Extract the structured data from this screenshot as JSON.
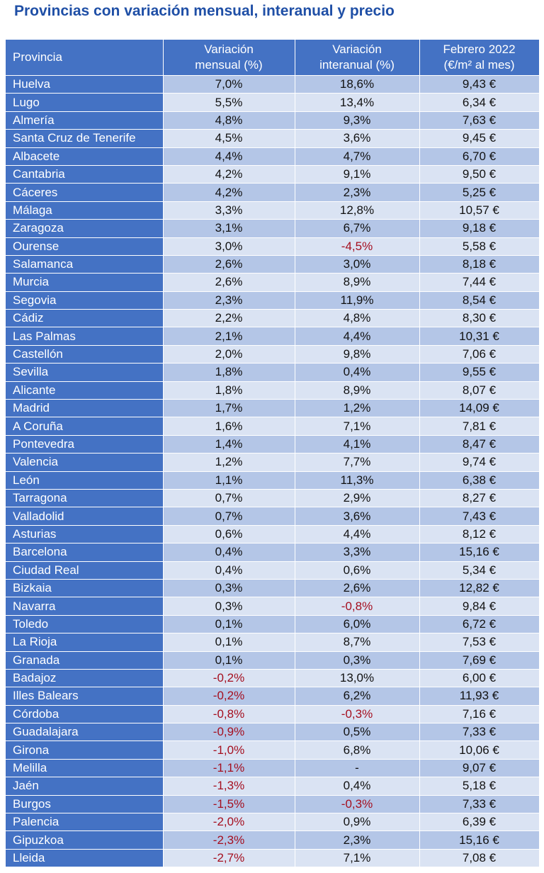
{
  "title": "Provincias con variación mensual, interanual y precio",
  "colors": {
    "header_blue": "#4472c4",
    "row_dark": "#b4c6e7",
    "row_light": "#dae3f3",
    "negative": "#a50f1f",
    "title": "#1f4fa6"
  },
  "table": {
    "headers": {
      "provincia": "Provincia",
      "mensual_l1": "Variación",
      "mensual_l2": "mensual (%)",
      "interanual_l1": "Variación",
      "interanual_l2": "interanual (%)",
      "precio_l1": "Febrero 2022",
      "precio_l2": "(€/m² al mes)"
    },
    "rows": [
      {
        "provincia": "Huelva",
        "mensual": "7,0%",
        "interanual": "18,6%",
        "precio": "9,43 €"
      },
      {
        "provincia": "Lugo",
        "mensual": "5,5%",
        "interanual": "13,4%",
        "precio": "6,34 €"
      },
      {
        "provincia": "Almería",
        "mensual": "4,8%",
        "interanual": "9,3%",
        "precio": "7,63 €"
      },
      {
        "provincia": "Santa Cruz de Tenerife",
        "mensual": "4,5%",
        "interanual": "3,6%",
        "precio": "9,45 €"
      },
      {
        "provincia": "Albacete",
        "mensual": "4,4%",
        "interanual": "4,7%",
        "precio": "6,70 €"
      },
      {
        "provincia": "Cantabria",
        "mensual": "4,2%",
        "interanual": "9,1%",
        "precio": "9,50 €"
      },
      {
        "provincia": "Cáceres",
        "mensual": "4,2%",
        "interanual": "2,3%",
        "precio": "5,25 €"
      },
      {
        "provincia": "Málaga",
        "mensual": "3,3%",
        "interanual": "12,8%",
        "precio": "10,57 €"
      },
      {
        "provincia": "Zaragoza",
        "mensual": "3,1%",
        "interanual": "6,7%",
        "precio": "9,18 €"
      },
      {
        "provincia": "Ourense",
        "mensual": "3,0%",
        "interanual": "-4,5%",
        "precio": "5,58 €"
      },
      {
        "provincia": "Salamanca",
        "mensual": "2,6%",
        "interanual": "3,0%",
        "precio": "8,18 €"
      },
      {
        "provincia": "Murcia",
        "mensual": "2,6%",
        "interanual": "8,9%",
        "precio": "7,44 €"
      },
      {
        "provincia": "Segovia",
        "mensual": "2,3%",
        "interanual": "11,9%",
        "precio": "8,54 €"
      },
      {
        "provincia": "Cádiz",
        "mensual": "2,2%",
        "interanual": "4,8%",
        "precio": "8,30 €"
      },
      {
        "provincia": "Las Palmas",
        "mensual": "2,1%",
        "interanual": "4,4%",
        "precio": "10,31 €"
      },
      {
        "provincia": "Castellón",
        "mensual": "2,0%",
        "interanual": "9,8%",
        "precio": "7,06 €"
      },
      {
        "provincia": "Sevilla",
        "mensual": "1,8%",
        "interanual": "0,4%",
        "precio": "9,55 €"
      },
      {
        "provincia": "Alicante",
        "mensual": "1,8%",
        "interanual": "8,9%",
        "precio": "8,07 €"
      },
      {
        "provincia": "Madrid",
        "mensual": "1,7%",
        "interanual": "1,2%",
        "precio": "14,09 €"
      },
      {
        "provincia": "A Coruña",
        "mensual": "1,6%",
        "interanual": "7,1%",
        "precio": "7,81 €"
      },
      {
        "provincia": "Pontevedra",
        "mensual": "1,4%",
        "interanual": "4,1%",
        "precio": "8,47 €"
      },
      {
        "provincia": "Valencia",
        "mensual": "1,2%",
        "interanual": "7,7%",
        "precio": "9,74 €"
      },
      {
        "provincia": "León",
        "mensual": "1,1%",
        "interanual": "11,3%",
        "precio": "6,38 €"
      },
      {
        "provincia": "Tarragona",
        "mensual": "0,7%",
        "interanual": "2,9%",
        "precio": "8,27 €"
      },
      {
        "provincia": "Valladolid",
        "mensual": "0,7%",
        "interanual": "3,6%",
        "precio": "7,43 €"
      },
      {
        "provincia": "Asturias",
        "mensual": "0,6%",
        "interanual": "4,4%",
        "precio": "8,12 €"
      },
      {
        "provincia": "Barcelona",
        "mensual": "0,4%",
        "interanual": "3,3%",
        "precio": "15,16 €"
      },
      {
        "provincia": "Ciudad Real",
        "mensual": "0,4%",
        "interanual": "0,6%",
        "precio": "5,34 €"
      },
      {
        "provincia": "Bizkaia",
        "mensual": "0,3%",
        "interanual": "2,6%",
        "precio": "12,82 €"
      },
      {
        "provincia": "Navarra",
        "mensual": "0,3%",
        "interanual": "-0,8%",
        "precio": "9,84 €"
      },
      {
        "provincia": "Toledo",
        "mensual": "0,1%",
        "interanual": "6,0%",
        "precio": "6,72 €"
      },
      {
        "provincia": "La Rioja",
        "mensual": "0,1%",
        "interanual": "8,7%",
        "precio": "7,53 €"
      },
      {
        "provincia": "Granada",
        "mensual": "0,1%",
        "interanual": "0,3%",
        "precio": "7,69 €"
      },
      {
        "provincia": "Badajoz",
        "mensual": "-0,2%",
        "interanual": "13,0%",
        "precio": "6,00 €"
      },
      {
        "provincia": "Illes Balears",
        "mensual": "-0,2%",
        "interanual": "6,2%",
        "precio": "11,93 €"
      },
      {
        "provincia": "Córdoba",
        "mensual": "-0,8%",
        "interanual": "-0,3%",
        "precio": "7,16 €"
      },
      {
        "provincia": "Guadalajara",
        "mensual": "-0,9%",
        "interanual": "0,5%",
        "precio": "7,33 €"
      },
      {
        "provincia": "Girona",
        "mensual": "-1,0%",
        "interanual": "6,8%",
        "precio": "10,06 €"
      },
      {
        "provincia": "Melilla",
        "mensual": "-1,1%",
        "interanual": "-",
        "precio": "9,07 €"
      },
      {
        "provincia": "Jaén",
        "mensual": "-1,3%",
        "interanual": "0,4%",
        "precio": "5,18 €"
      },
      {
        "provincia": "Burgos",
        "mensual": "-1,5%",
        "interanual": "-0,3%",
        "precio": "7,33 €"
      },
      {
        "provincia": "Palencia",
        "mensual": "-2,0%",
        "interanual": "0,9%",
        "precio": "6,39 €"
      },
      {
        "provincia": "Gipuzkoa",
        "mensual": "-2,3%",
        "interanual": "2,3%",
        "precio": "15,16 €"
      },
      {
        "provincia": "Lleida",
        "mensual": "-2,7%",
        "interanual": "7,1%",
        "precio": "7,08 €"
      }
    ]
  }
}
